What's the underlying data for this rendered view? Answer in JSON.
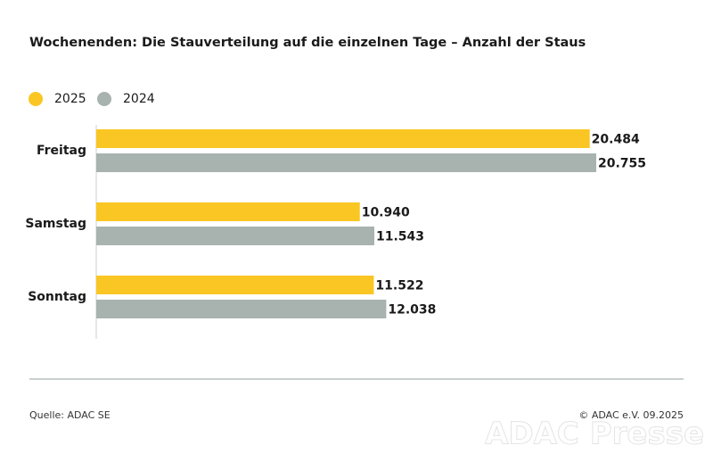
{
  "chart_data": {
    "type": "bar",
    "orientation": "horizontal",
    "title": "Wochenenden: Die Stauverteilung auf die einzelnen Tage – Anzahl der Staus",
    "categories": [
      "Freitag",
      "Samstag",
      "Sonntag"
    ],
    "series": [
      {
        "name": "2025",
        "color": "#f9c623",
        "values": [
          20484,
          10940,
          11522
        ],
        "value_labels": [
          "20.484",
          "10.940",
          "11.522"
        ]
      },
      {
        "name": "2024",
        "color": "#a8b3b0",
        "values": [
          20755,
          11543,
          12038
        ],
        "value_labels": [
          "20.755",
          "11.543",
          "12.038"
        ]
      }
    ],
    "source": "Quelle: ADAC SE",
    "copyright": "© ADAC e.V. 09.2025",
    "watermark": "ADAC Presse"
  }
}
